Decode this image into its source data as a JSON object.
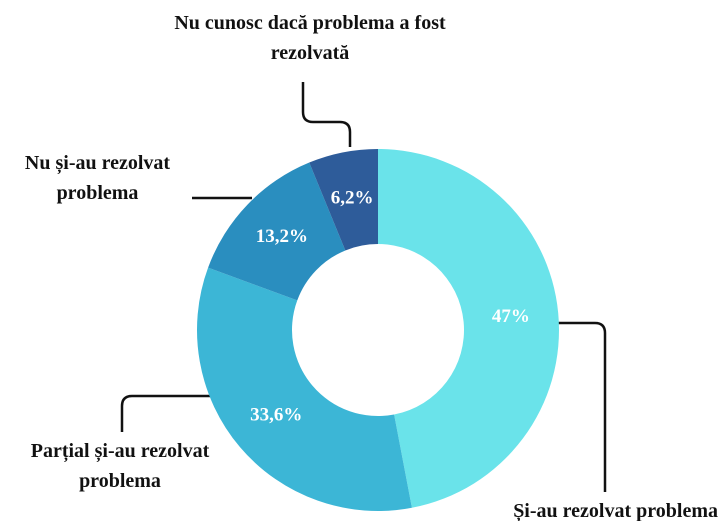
{
  "chart_data": {
    "type": "pie",
    "categories": [
      "Și-au rezolvat problema",
      "Parțial și-au rezolvat problema",
      "Nu și-au rezolvat problema",
      "Nu cunosc dacă problema a fost rezolvată"
    ],
    "values": [
      47,
      33.6,
      13.2,
      6.2
    ],
    "value_labels": [
      "47%",
      "33,6%",
      "13,2%",
      "6,2%"
    ],
    "colors": [
      "#6ae3ea",
      "#3cb6d6",
      "#2a8ebf",
      "#2e5c9a"
    ]
  }
}
